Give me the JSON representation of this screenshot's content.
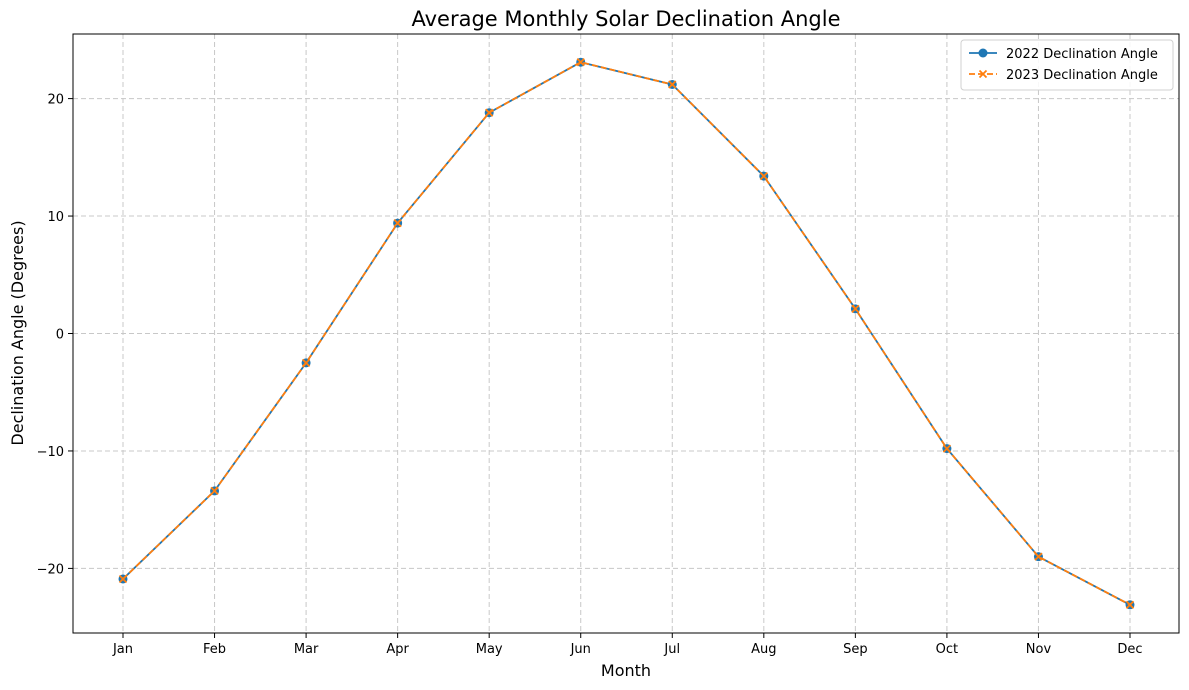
{
  "chart_data": {
    "type": "line",
    "title": "Average Monthly Solar Declination Angle",
    "xlabel": "Month",
    "ylabel": "Declination Angle (Degrees)",
    "categories": [
      "Jan",
      "Feb",
      "Mar",
      "Apr",
      "May",
      "Jun",
      "Jul",
      "Aug",
      "Sep",
      "Oct",
      "Nov",
      "Dec"
    ],
    "ylim": [
      -25.5,
      25.5
    ],
    "yticks": [
      -20,
      -10,
      0,
      10,
      20
    ],
    "ytick_labels": [
      "−20",
      "−10",
      "0",
      "10",
      "20"
    ],
    "grid": true,
    "legend_position": "top-right",
    "series": [
      {
        "name": "2022 Declination Angle",
        "color": "#1f77b4",
        "line_style": "solid",
        "marker": "circle",
        "values": [
          -20.9,
          -13.4,
          -2.5,
          9.4,
          18.8,
          23.1,
          21.2,
          13.4,
          2.1,
          -9.8,
          -19.0,
          -23.1
        ]
      },
      {
        "name": "2023 Declination Angle",
        "color": "#ff7f0e",
        "line_style": "dashed",
        "marker": "x",
        "values": [
          -20.9,
          -13.4,
          -2.5,
          9.4,
          18.8,
          23.1,
          21.2,
          13.4,
          2.1,
          -9.8,
          -19.0,
          -23.1
        ]
      }
    ]
  }
}
